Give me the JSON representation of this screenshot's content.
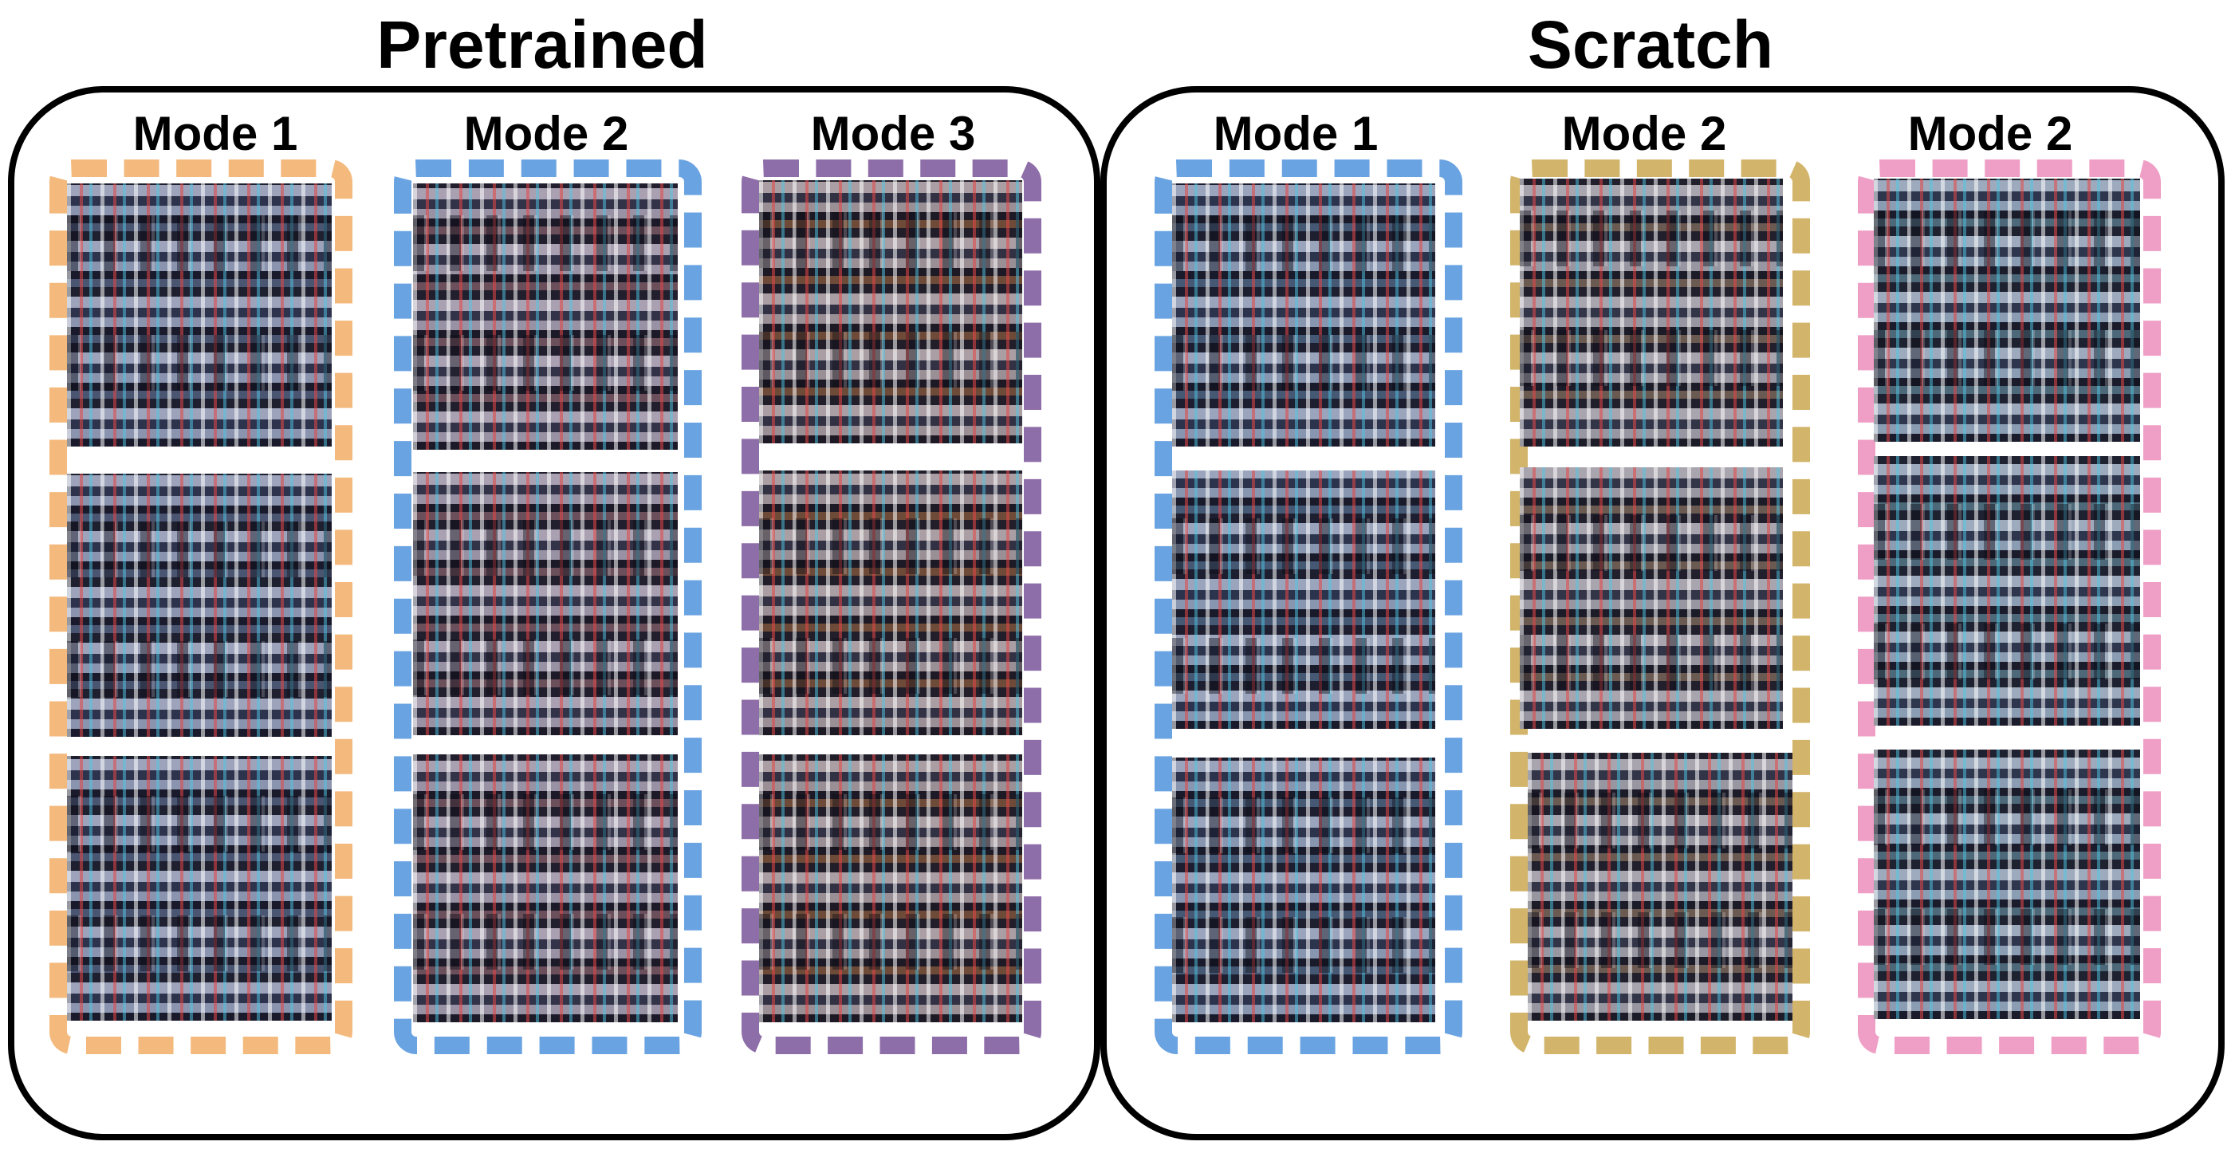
{
  "groups": [
    {
      "title": "Pretrained",
      "modes": [
        {
          "label": "Mode 1",
          "color": "#f4b97d",
          "samples": 3
        },
        {
          "label": "Mode 2",
          "color": "#6aa3e2",
          "samples": 3
        },
        {
          "label": "Mode 3",
          "color": "#8e6ea8",
          "samples": 3
        }
      ]
    },
    {
      "title": "Scratch",
      "modes": [
        {
          "label": "Mode 1",
          "color": "#6aa3e2",
          "samples": 3
        },
        {
          "label": "Mode 2",
          "color": "#d2b46a",
          "samples": 3
        },
        {
          "label": "Mode 2",
          "color": "#ef9ec6",
          "samples": 3
        }
      ]
    }
  ]
}
